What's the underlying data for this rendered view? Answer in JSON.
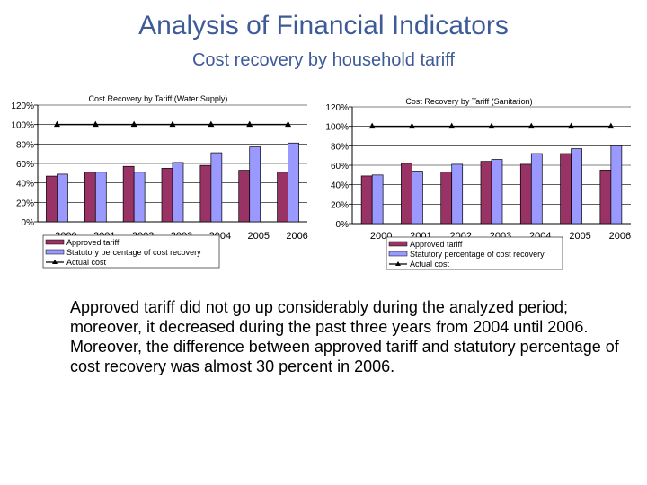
{
  "slide": {
    "title": "Analysis of Financial Indicators",
    "subtitle": "Cost recovery by household tariff",
    "body": "Approved tariff did not go up considerably during the analyzed period; moreover, it decreased during the past three years from 2004 until 2006. Moreover, the difference between approved tariff and statutory percentage of cost recovery was almost 30 percent in 2006."
  },
  "colors": {
    "approved": "#993366",
    "statutory": "#9999ff",
    "actual": "#000000",
    "grid": "#000000",
    "title": "#3d5a99"
  },
  "chart_data": [
    {
      "type": "bar",
      "title": "Cost Recovery by Tariff (Water Supply)",
      "categories": [
        "2000",
        "2001",
        "2002",
        "2003",
        "2004",
        "2005",
        "2006"
      ],
      "ylim": [
        0,
        120
      ],
      "yticks": [
        "0%",
        "20%",
        "40%",
        "60%",
        "80%",
        "100%",
        "120%"
      ],
      "series": [
        {
          "name": "Approved tariff",
          "kind": "bar",
          "values": [
            47,
            51,
            57,
            55,
            58,
            53,
            51
          ]
        },
        {
          "name": "Statutory percentage of cost recovery",
          "kind": "bar",
          "values": [
            49,
            51,
            51,
            61,
            71,
            77,
            81
          ]
        },
        {
          "name": "Actual cost",
          "kind": "line",
          "values": [
            100,
            100,
            100,
            100,
            100,
            100,
            100
          ]
        }
      ]
    },
    {
      "type": "bar",
      "title": "Cost Recovery by Tariff (Sanitation)",
      "categories": [
        "2000",
        "2001",
        "2002",
        "2003",
        "2004",
        "2005",
        "2006"
      ],
      "ylim": [
        0,
        120
      ],
      "yticks": [
        "0%",
        "20%",
        "40%",
        "60%",
        "80%",
        "100%",
        "120%"
      ],
      "series": [
        {
          "name": "Approved tariff",
          "kind": "bar",
          "values": [
            49,
            62,
            53,
            64,
            61,
            72,
            55
          ]
        },
        {
          "name": "Statutory percentage of cost recovery",
          "kind": "bar",
          "values": [
            50,
            54,
            61,
            66,
            72,
            77,
            80
          ]
        },
        {
          "name": "Actual cost",
          "kind": "line",
          "values": [
            100,
            100,
            100,
            100,
            100,
            100,
            100
          ]
        }
      ]
    }
  ]
}
